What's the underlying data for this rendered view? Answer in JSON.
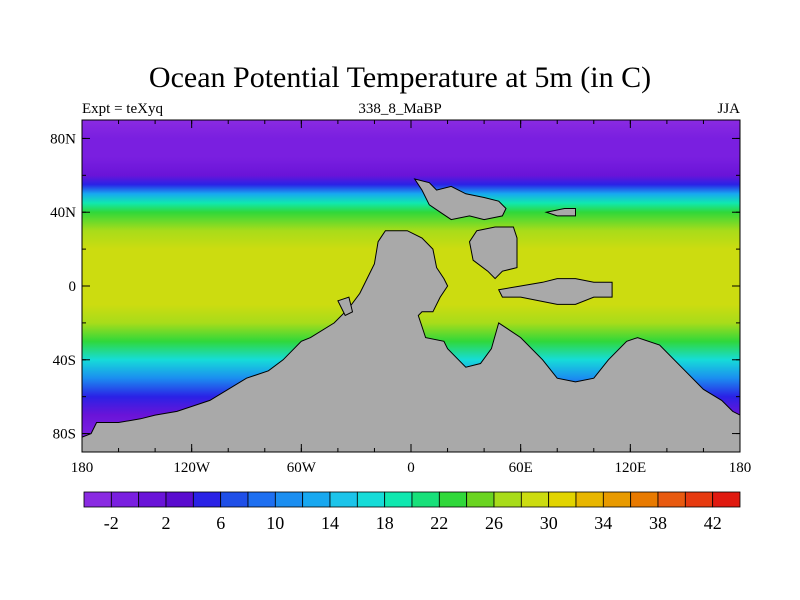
{
  "title": "Ocean Potential Temperature at 5m (in C)",
  "left_string": "Expt = teXyq",
  "center_string": "338_8_MaBP",
  "right_string": "JJA",
  "chart_data": {
    "type": "heatmap",
    "title": "Ocean Potential Temperature at 5m (in C)",
    "xlim": [
      -180,
      180
    ],
    "ylim": [
      -90,
      90
    ],
    "x_ticks": [
      {
        "value": -180,
        "label": "180"
      },
      {
        "value": -120,
        "label": "120W"
      },
      {
        "value": -60,
        "label": "60W"
      },
      {
        "value": 0,
        "label": "0"
      },
      {
        "value": 60,
        "label": "60E"
      },
      {
        "value": 120,
        "label": "120E"
      },
      {
        "value": 180,
        "label": "180"
      }
    ],
    "y_ticks": [
      {
        "value": 80,
        "label": "80N"
      },
      {
        "value": 40,
        "label": "40N"
      },
      {
        "value": 0,
        "label": "0"
      },
      {
        "value": -40,
        "label": "40S"
      },
      {
        "value": -80,
        "label": "80S"
      }
    ],
    "colorbar": {
      "levels": [
        -4,
        -2,
        0,
        2,
        4,
        6,
        8,
        10,
        12,
        14,
        16,
        18,
        20,
        22,
        24,
        26,
        28,
        30,
        32,
        34,
        36,
        38,
        40,
        42,
        44
      ],
      "labels": [
        {
          "value": -2,
          "label": "-2"
        },
        {
          "value": 2,
          "label": "2"
        },
        {
          "value": 6,
          "label": "6"
        },
        {
          "value": 10,
          "label": "10"
        },
        {
          "value": 14,
          "label": "14"
        },
        {
          "value": 18,
          "label": "18"
        },
        {
          "value": 22,
          "label": "22"
        },
        {
          "value": 26,
          "label": "26"
        },
        {
          "value": 30,
          "label": "30"
        },
        {
          "value": 34,
          "label": "34"
        },
        {
          "value": 38,
          "label": "38"
        },
        {
          "value": 42,
          "label": "42"
        }
      ],
      "colors": [
        "#8a2be2",
        "#7a1fe0",
        "#6a14d8",
        "#5a0ccf",
        "#2a22e6",
        "#1f4fe8",
        "#1e6ff0",
        "#1b8ef0",
        "#18a8f0",
        "#1cc4ea",
        "#16dcd8",
        "#10e8b0",
        "#18e07a",
        "#30d83a",
        "#6ad420",
        "#a8dc1a",
        "#ccdc10",
        "#e2d400",
        "#e8b600",
        "#e89a00",
        "#e87a00",
        "#e85a10",
        "#e63a10",
        "#e01a10"
      ]
    },
    "land_color": "#a9a9a9",
    "sst_by_latitude": [
      {
        "lat": 90,
        "temp": -2.5
      },
      {
        "lat": 80,
        "temp": -2.0
      },
      {
        "lat": 70,
        "temp": -1.5
      },
      {
        "lat": 60,
        "temp": 0.5
      },
      {
        "lat": 55,
        "temp": 5
      },
      {
        "lat": 50,
        "temp": 12
      },
      {
        "lat": 45,
        "temp": 18
      },
      {
        "lat": 40,
        "temp": 22
      },
      {
        "lat": 30,
        "temp": 26
      },
      {
        "lat": 20,
        "temp": 28
      },
      {
        "lat": 10,
        "temp": 29
      },
      {
        "lat": 0,
        "temp": 29
      },
      {
        "lat": -10,
        "temp": 28
      },
      {
        "lat": -20,
        "temp": 26
      },
      {
        "lat": -30,
        "temp": 22
      },
      {
        "lat": -40,
        "temp": 16
      },
      {
        "lat": -50,
        "temp": 10
      },
      {
        "lat": -60,
        "temp": 4
      },
      {
        "lat": -70,
        "temp": 0
      },
      {
        "lat": -80,
        "temp": -2
      },
      {
        "lat": -90,
        "temp": -2.5
      }
    ],
    "land_masses": [
      {
        "name": "southern-continent",
        "points": [
          [
            -180,
            -90
          ],
          [
            -180,
            -82
          ],
          [
            -175,
            -80
          ],
          [
            -172,
            -74
          ],
          [
            -160,
            -74
          ],
          [
            -148,
            -72
          ],
          [
            -140,
            -70
          ],
          [
            -128,
            -68
          ],
          [
            -110,
            -62
          ],
          [
            -100,
            -56
          ],
          [
            -90,
            -50
          ],
          [
            -78,
            -46
          ],
          [
            -70,
            -40
          ],
          [
            -60,
            -30
          ],
          [
            -55,
            -28
          ],
          [
            -42,
            -20
          ],
          [
            -34,
            -12
          ],
          [
            -28,
            -4
          ],
          [
            -24,
            4
          ],
          [
            -20,
            12
          ],
          [
            -18,
            24
          ],
          [
            -14,
            30
          ],
          [
            -2,
            30
          ],
          [
            6,
            26
          ],
          [
            12,
            20
          ],
          [
            14,
            10
          ],
          [
            18,
            4
          ],
          [
            20,
            0
          ],
          [
            16,
            -6
          ],
          [
            12,
            -14
          ],
          [
            6,
            -14
          ],
          [
            4,
            -16
          ],
          [
            6,
            -22
          ],
          [
            8,
            -28
          ],
          [
            18,
            -30
          ],
          [
            20,
            -34
          ],
          [
            26,
            -40
          ],
          [
            30,
            -44
          ],
          [
            38,
            -42
          ],
          [
            44,
            -34
          ],
          [
            48,
            -20
          ],
          [
            60,
            -28
          ],
          [
            72,
            -40
          ],
          [
            80,
            -50
          ],
          [
            90,
            -52
          ],
          [
            100,
            -50
          ],
          [
            108,
            -40
          ],
          [
            118,
            -30
          ],
          [
            124,
            -28
          ],
          [
            136,
            -32
          ],
          [
            148,
            -44
          ],
          [
            160,
            -56
          ],
          [
            170,
            -62
          ],
          [
            176,
            -68
          ],
          [
            180,
            -70
          ],
          [
            180,
            -90
          ]
        ]
      },
      {
        "name": "northern-continent",
        "points": [
          [
            2,
            58
          ],
          [
            10,
            56
          ],
          [
            14,
            52
          ],
          [
            22,
            54
          ],
          [
            30,
            50
          ],
          [
            40,
            48
          ],
          [
            48,
            46
          ],
          [
            52,
            42
          ],
          [
            50,
            38
          ],
          [
            40,
            36
          ],
          [
            32,
            38
          ],
          [
            22,
            36
          ],
          [
            16,
            40
          ],
          [
            10,
            44
          ],
          [
            6,
            52
          ],
          [
            2,
            58
          ]
        ]
      },
      {
        "name": "eastern-peninsula",
        "points": [
          [
            36,
            30
          ],
          [
            46,
            32
          ],
          [
            56,
            32
          ],
          [
            58,
            26
          ],
          [
            58,
            10
          ],
          [
            50,
            8
          ],
          [
            46,
            4
          ],
          [
            42,
            8
          ],
          [
            34,
            14
          ],
          [
            32,
            24
          ],
          [
            36,
            30
          ]
        ]
      },
      {
        "name": "equatorial-island-chain",
        "points": [
          [
            48,
            -2
          ],
          [
            60,
            0
          ],
          [
            72,
            2
          ],
          [
            80,
            4
          ],
          [
            90,
            4
          ],
          [
            100,
            2
          ],
          [
            110,
            2
          ],
          [
            110,
            -6
          ],
          [
            100,
            -6
          ],
          [
            90,
            -10
          ],
          [
            80,
            -10
          ],
          [
            70,
            -8
          ],
          [
            60,
            -6
          ],
          [
            50,
            -6
          ],
          [
            48,
            -2
          ]
        ]
      },
      {
        "name": "small-northern-island",
        "points": [
          [
            74,
            40
          ],
          [
            84,
            42
          ],
          [
            90,
            42
          ],
          [
            90,
            38
          ],
          [
            80,
            38
          ],
          [
            74,
            40
          ]
        ]
      },
      {
        "name": "western-island",
        "points": [
          [
            -40,
            -8
          ],
          [
            -34,
            -6
          ],
          [
            -32,
            -14
          ],
          [
            -36,
            -16
          ],
          [
            -40,
            -8
          ]
        ]
      }
    ]
  }
}
